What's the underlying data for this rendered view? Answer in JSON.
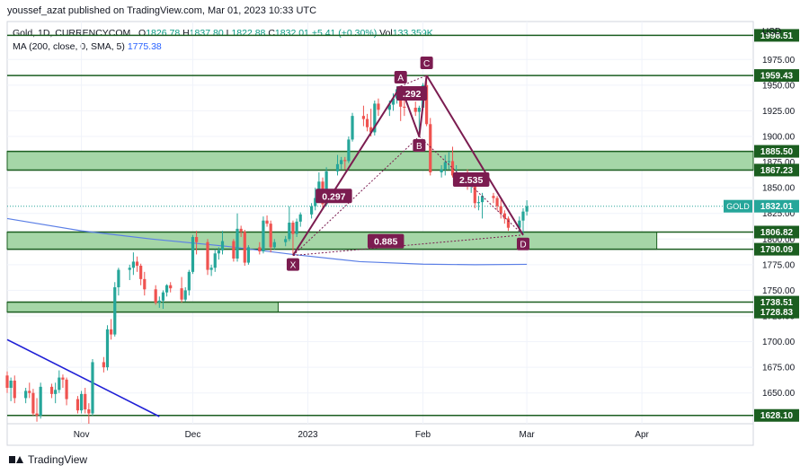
{
  "publisher_line": "youssef_azat published on TradingView.com, Mar 01, 2023 10:33 UTC",
  "legend": {
    "symbol": "Gold, 1D, CURRENCYCOM",
    "o_label": "O",
    "o": "1826.78",
    "h_label": "H",
    "h": "1837.80",
    "l_label": "L",
    "l": "1822.88",
    "c_label": "C",
    "c": "1832.01",
    "change": "+5.41 (+0.30%)",
    "vol_label": "Vol",
    "vol": "133.359K",
    "ma_label": "MA (200, close, 0, SMA, 5)",
    "ma_value": "1775.38"
  },
  "footer": {
    "brand": "TradingView"
  },
  "colors": {
    "up": "#26a69a",
    "down": "#ef5350",
    "zone_fill": "#a5d6a7",
    "zone_border": "#1b5e20",
    "pattern": "#7b1c50",
    "ma": "#5b7fe6",
    "trend": "#1f1fd6"
  },
  "chart_data": {
    "type": "candlestick",
    "instrument": "Gold, 1D, CURRENCYCOM",
    "currency": "USD",
    "y_range": [
      1620,
      2012
    ],
    "y_ticks": [
      1650,
      1675,
      1700,
      1725,
      1750,
      1775,
      1800,
      1825,
      1850,
      1875,
      1900,
      1925,
      1950,
      1975
    ],
    "x_start": "2022-10-12",
    "x_end": "2023-05-01",
    "x_ticks": [
      {
        "date": "2022-11-01",
        "label": "Nov"
      },
      {
        "date": "2022-12-01",
        "label": "Dec"
      },
      {
        "date": "2023-01-01",
        "label": "2023"
      },
      {
        "date": "2023-02-01",
        "label": "Feb"
      },
      {
        "date": "2023-03-01",
        "label": "Mar"
      },
      {
        "date": "2023-04-01",
        "label": "Apr"
      }
    ],
    "last_price": {
      "label": "GOLD",
      "value": 1832.01
    },
    "price_levels": [
      {
        "value": 1998.51,
        "label": "1998.51"
      },
      {
        "value": 1959.43,
        "label": "1959.43"
      },
      {
        "value": 1885.5,
        "label": "1885.50"
      },
      {
        "value": 1867.23,
        "label": "1867.23"
      },
      {
        "value": 1806.82,
        "label": "1806.82"
      },
      {
        "value": 1790.09,
        "label": "1790.09"
      },
      {
        "value": 1738.51,
        "label": "1738.51"
      },
      {
        "value": 1728.83,
        "label": "1728.83"
      },
      {
        "value": 1628.1,
        "label": "1628.10"
      }
    ],
    "zones": [
      {
        "low": 1867.23,
        "high": 1885.5,
        "from": "2022-10-12",
        "to": "2023-05-01"
      },
      {
        "low": 1790.09,
        "high": 1806.82,
        "from": "2022-10-12",
        "to": "2023-04-05"
      },
      {
        "low": 1728.83,
        "high": 1738.51,
        "from": "2022-10-12",
        "to": "2022-12-24"
      }
    ],
    "pattern_points": [
      {
        "label": "X",
        "date": "2022-12-28",
        "price": 1784
      },
      {
        "label": "A",
        "date": "2023-01-26",
        "price": 1949
      },
      {
        "label": "B",
        "date": "2023-01-31",
        "price": 1900
      },
      {
        "label": "C",
        "date": "2023-02-02",
        "price": 1959.5
      },
      {
        "label": "D",
        "date": "2023-02-28",
        "price": 1804
      }
    ],
    "ratios": [
      {
        "label": "0.297",
        "date": "2023-01-08",
        "price": 1842
      },
      {
        "label": ".292",
        "date": "2023-01-29",
        "price": 1942
      },
      {
        "label": "2.535",
        "date": "2023-02-14",
        "price": 1858
      },
      {
        "label": "0.885",
        "date": "2023-01-22",
        "price": 1798
      }
    ],
    "ma200": [
      [
        "2022-10-12",
        1820
      ],
      [
        "2022-11-01",
        1808
      ],
      [
        "2022-11-20",
        1800
      ],
      [
        "2022-12-10",
        1793
      ],
      [
        "2022-12-28",
        1785
      ],
      [
        "2023-01-15",
        1778
      ],
      [
        "2023-02-01",
        1775.5
      ],
      [
        "2023-02-15",
        1775
      ],
      [
        "2023-03-01",
        1775.38
      ]
    ],
    "trend_line": [
      [
        "2022-10-12",
        1702
      ],
      [
        "2022-11-22",
        1627
      ]
    ],
    "candles": [
      [
        "2022-10-12",
        1667,
        1671,
        1650,
        1655
      ],
      [
        "2022-10-13",
        1655,
        1665,
        1642,
        1662
      ],
      [
        "2022-10-14",
        1662,
        1667,
        1640,
        1645
      ],
      [
        "2022-10-17",
        1645,
        1655,
        1640,
        1652
      ],
      [
        "2022-10-18",
        1652,
        1660,
        1645,
        1650
      ],
      [
        "2022-10-19",
        1650,
        1654,
        1628,
        1630
      ],
      [
        "2022-10-20",
        1630,
        1645,
        1622,
        1628
      ],
      [
        "2022-10-21",
        1628,
        1660,
        1625,
        1656
      ],
      [
        "2022-10-24",
        1656,
        1659,
        1645,
        1649
      ],
      [
        "2022-10-25",
        1649,
        1660,
        1640,
        1653
      ],
      [
        "2022-10-26",
        1653,
        1672,
        1650,
        1665
      ],
      [
        "2022-10-27",
        1665,
        1668,
        1655,
        1663
      ],
      [
        "2022-10-28",
        1663,
        1665,
        1638,
        1644
      ],
      [
        "2022-10-31",
        1644,
        1647,
        1630,
        1633
      ],
      [
        "2022-11-01",
        1633,
        1652,
        1630,
        1649
      ],
      [
        "2022-11-02",
        1649,
        1655,
        1630,
        1634
      ],
      [
        "2022-11-03",
        1634,
        1640,
        1620,
        1630
      ],
      [
        "2022-11-04",
        1630,
        1683,
        1628,
        1680
      ],
      [
        "2022-11-07",
        1680,
        1685,
        1670,
        1675
      ],
      [
        "2022-11-08",
        1675,
        1716,
        1672,
        1712
      ],
      [
        "2022-11-09",
        1712,
        1722,
        1702,
        1707
      ],
      [
        "2022-11-10",
        1707,
        1758,
        1705,
        1753
      ],
      [
        "2022-11-11",
        1753,
        1772,
        1745,
        1770
      ],
      [
        "2022-11-14",
        1770,
        1775,
        1760,
        1772
      ],
      [
        "2022-11-15",
        1772,
        1787,
        1765,
        1778
      ],
      [
        "2022-11-16",
        1778,
        1783,
        1768,
        1774
      ],
      [
        "2022-11-17",
        1774,
        1776,
        1755,
        1761
      ],
      [
        "2022-11-18",
        1761,
        1768,
        1745,
        1751
      ],
      [
        "2022-11-21",
        1751,
        1755,
        1736,
        1738
      ],
      [
        "2022-11-22",
        1738,
        1744,
        1733,
        1740
      ],
      [
        "2022-11-23",
        1740,
        1750,
        1732,
        1748
      ],
      [
        "2022-11-24",
        1748,
        1756,
        1744,
        1755
      ],
      [
        "2022-11-25",
        1755,
        1758,
        1748,
        1752
      ],
      [
        "2022-11-28",
        1752,
        1763,
        1738,
        1741
      ],
      [
        "2022-11-29",
        1741,
        1753,
        1739,
        1750
      ],
      [
        "2022-11-30",
        1750,
        1770,
        1745,
        1768
      ],
      [
        "2022-12-01",
        1768,
        1804,
        1766,
        1802
      ],
      [
        "2022-12-02",
        1802,
        1808,
        1785,
        1797
      ],
      [
        "2022-12-05",
        1797,
        1800,
        1765,
        1770
      ],
      [
        "2022-12-06",
        1770,
        1775,
        1764,
        1772
      ],
      [
        "2022-12-07",
        1772,
        1790,
        1768,
        1786
      ],
      [
        "2022-12-08",
        1786,
        1792,
        1780,
        1789
      ],
      [
        "2022-12-09",
        1789,
        1808,
        1785,
        1798
      ],
      [
        "2022-12-12",
        1798,
        1800,
        1778,
        1781
      ],
      [
        "2022-12-13",
        1781,
        1825,
        1778,
        1810
      ],
      [
        "2022-12-14",
        1810,
        1813,
        1802,
        1807
      ],
      [
        "2022-12-15",
        1807,
        1809,
        1774,
        1777
      ],
      [
        "2022-12-16",
        1777,
        1794,
        1775,
        1792
      ],
      [
        "2022-12-19",
        1792,
        1797,
        1785,
        1788
      ],
      [
        "2022-12-20",
        1788,
        1822,
        1786,
        1818
      ],
      [
        "2022-12-21",
        1818,
        1823,
        1812,
        1815
      ],
      [
        "2022-12-22",
        1815,
        1818,
        1787,
        1792
      ],
      [
        "2022-12-23",
        1792,
        1800,
        1790,
        1797
      ],
      [
        "2022-12-26",
        1797,
        1803,
        1793,
        1800
      ],
      [
        "2022-12-27",
        1800,
        1832,
        1798,
        1816
      ],
      [
        "2022-12-28",
        1816,
        1818,
        1784,
        1805
      ],
      [
        "2022-12-29",
        1805,
        1820,
        1802,
        1817
      ],
      [
        "2022-12-30",
        1817,
        1826,
        1812,
        1824
      ],
      [
        "2023-01-02",
        1824,
        1835,
        1820,
        1832
      ],
      [
        "2023-01-03",
        1832,
        1850,
        1828,
        1840
      ],
      [
        "2023-01-04",
        1840,
        1865,
        1838,
        1856
      ],
      [
        "2023-01-05",
        1856,
        1860,
        1830,
        1834
      ],
      [
        "2023-01-06",
        1834,
        1870,
        1832,
        1866
      ],
      [
        "2023-01-09",
        1866,
        1882,
        1862,
        1873
      ],
      [
        "2023-01-10",
        1873,
        1880,
        1868,
        1877
      ],
      [
        "2023-01-11",
        1877,
        1880,
        1868,
        1876
      ],
      [
        "2023-01-12",
        1876,
        1900,
        1874,
        1897
      ],
      [
        "2023-01-13",
        1897,
        1923,
        1895,
        1920
      ],
      [
        "2023-01-16",
        1920,
        1930,
        1910,
        1917
      ],
      [
        "2023-01-17",
        1917,
        1922,
        1905,
        1909
      ],
      [
        "2023-01-18",
        1909,
        1927,
        1900,
        1904
      ],
      [
        "2023-01-19",
        1904,
        1935,
        1901,
        1932
      ],
      [
        "2023-01-20",
        1932,
        1937,
        1920,
        1926
      ],
      [
        "2023-01-23",
        1926,
        1935,
        1920,
        1931
      ],
      [
        "2023-01-24",
        1931,
        1942,
        1925,
        1937
      ],
      [
        "2023-01-25",
        1937,
        1949,
        1932,
        1946
      ],
      [
        "2023-01-26",
        1946,
        1948,
        1915,
        1929
      ],
      [
        "2023-01-27",
        1929,
        1935,
        1920,
        1928
      ],
      [
        "2023-01-30",
        1928,
        1934,
        1920,
        1924
      ],
      [
        "2023-01-31",
        1924,
        1930,
        1900,
        1928
      ],
      [
        "2023-02-01",
        1928,
        1952,
        1925,
        1950
      ],
      [
        "2023-02-02",
        1950,
        1959.5,
        1910,
        1912
      ],
      [
        "2023-02-03",
        1912,
        1918,
        1862,
        1865
      ],
      [
        "2023-02-06",
        1865,
        1872,
        1860,
        1868
      ],
      [
        "2023-02-07",
        1868,
        1882,
        1862,
        1875
      ],
      [
        "2023-02-08",
        1875,
        1885,
        1868,
        1876
      ],
      [
        "2023-02-09",
        1876,
        1890,
        1860,
        1862
      ],
      [
        "2023-02-10",
        1862,
        1872,
        1855,
        1864
      ],
      [
        "2023-02-13",
        1864,
        1868,
        1848,
        1852
      ],
      [
        "2023-02-14",
        1852,
        1860,
        1845,
        1855
      ],
      [
        "2023-02-15",
        1855,
        1858,
        1830,
        1835
      ],
      [
        "2023-02-16",
        1835,
        1842,
        1828,
        1836
      ],
      [
        "2023-02-17",
        1836,
        1845,
        1820,
        1842
      ],
      [
        "2023-02-20",
        1842,
        1845,
        1835,
        1840
      ],
      [
        "2023-02-21",
        1840,
        1842,
        1828,
        1832
      ],
      [
        "2023-02-22",
        1832,
        1838,
        1820,
        1825
      ],
      [
        "2023-02-23",
        1825,
        1828,
        1815,
        1820
      ],
      [
        "2023-02-24",
        1820,
        1822,
        1808,
        1811
      ],
      [
        "2023-02-27",
        1811,
        1822,
        1806,
        1818
      ],
      [
        "2023-02-28",
        1818,
        1830,
        1804,
        1826.8
      ],
      [
        "2023-03-01",
        1826.78,
        1837.8,
        1822.88,
        1832.01
      ]
    ]
  }
}
